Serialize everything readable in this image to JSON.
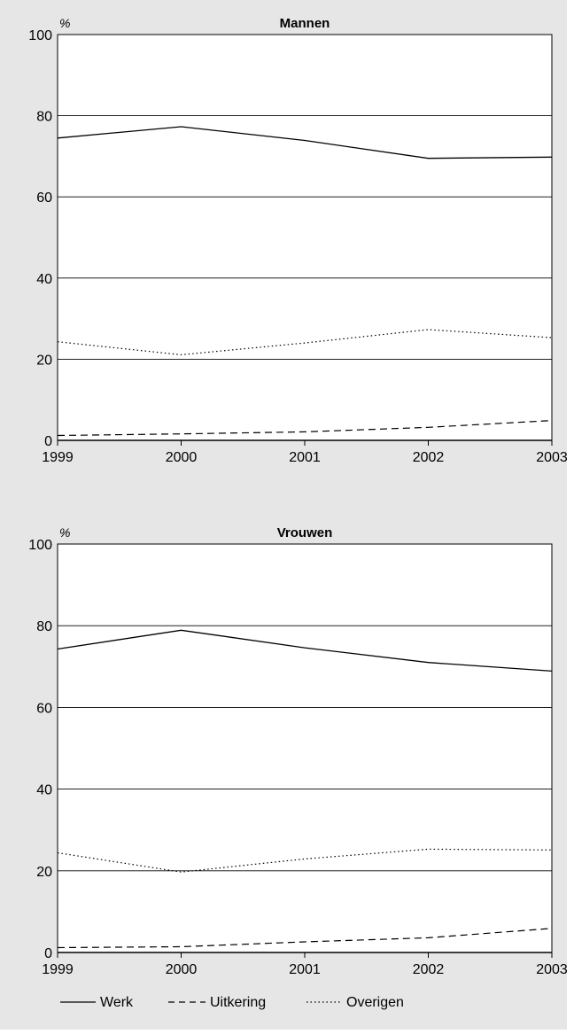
{
  "colors": {
    "background_panel": "#e6e6e6",
    "plot_area": "#ffffff",
    "line": "#000000"
  },
  "legend": {
    "placement": "bottom-left",
    "items": [
      {
        "label": "Werk",
        "style": "solid"
      },
      {
        "label": "Uitkering",
        "style": "dashed"
      },
      {
        "label": "Overigen",
        "style": "dotted"
      }
    ]
  },
  "chart_data": [
    {
      "type": "line",
      "title": "Mannen",
      "ylabel": "%",
      "xlabel": "",
      "x": [
        "1999",
        "2000",
        "2001",
        "2002",
        "2003"
      ],
      "ylim": [
        0,
        100
      ],
      "yticks": [
        0,
        20,
        40,
        60,
        80,
        100
      ],
      "grid": true,
      "series": [
        {
          "name": "Werk",
          "style": "solid",
          "values": [
            74.5,
            77.3,
            73.9,
            69.5,
            69.8
          ]
        },
        {
          "name": "Uitkering",
          "style": "dashed",
          "values": [
            1.2,
            1.6,
            2.1,
            3.2,
            4.9
          ]
        },
        {
          "name": "Overigen",
          "style": "dotted",
          "values": [
            24.3,
            21.1,
            24.0,
            27.3,
            25.3
          ]
        }
      ]
    },
    {
      "type": "line",
      "title": "Vrouwen",
      "ylabel": "%",
      "xlabel": "",
      "x": [
        "1999",
        "2000",
        "2001",
        "2002",
        "2003"
      ],
      "ylim": [
        0,
        100
      ],
      "yticks": [
        0,
        20,
        40,
        60,
        80,
        100
      ],
      "grid": true,
      "series": [
        {
          "name": "Werk",
          "style": "solid",
          "values": [
            74.3,
            78.9,
            74.6,
            71.0,
            68.9
          ]
        },
        {
          "name": "Uitkering",
          "style": "dashed",
          "values": [
            1.2,
            1.4,
            2.6,
            3.6,
            5.9
          ]
        },
        {
          "name": "Overigen",
          "style": "dotted",
          "values": [
            24.4,
            19.7,
            22.9,
            25.3,
            25.1
          ]
        }
      ]
    }
  ]
}
